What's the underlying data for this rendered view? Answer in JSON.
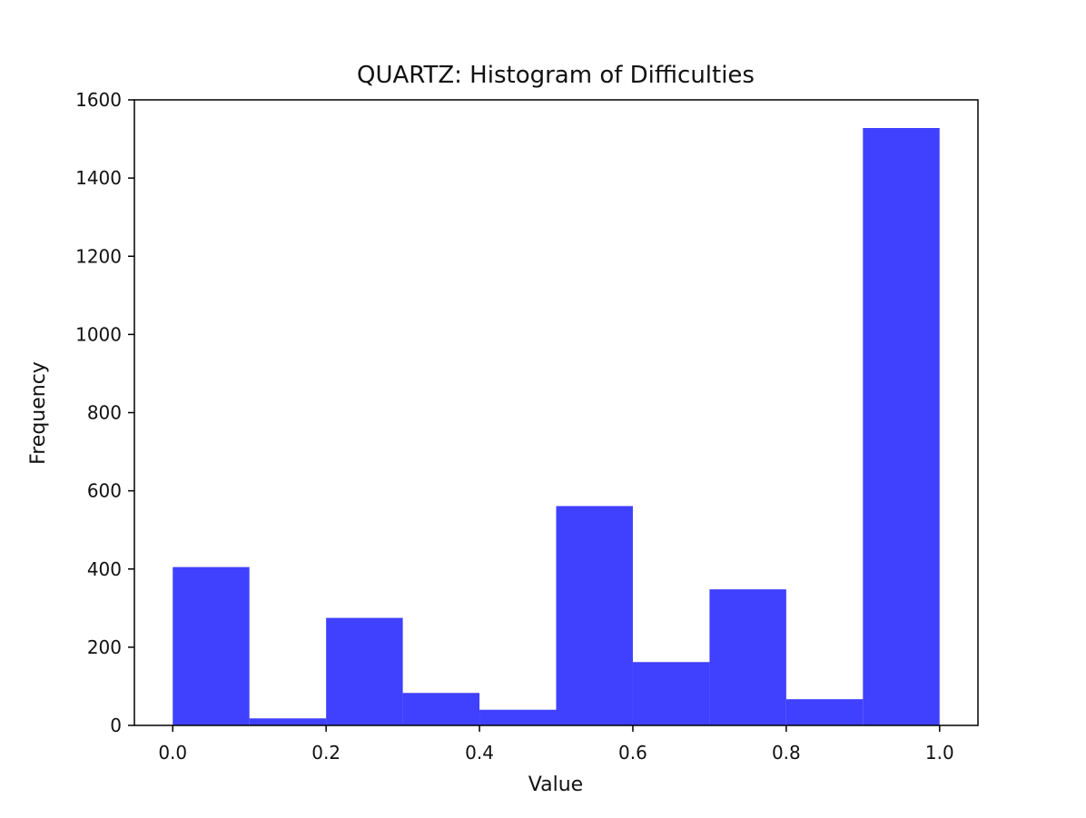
{
  "chart_data": {
    "type": "bar",
    "title": "QUARTZ: Histogram of Difficulties",
    "xlabel": "Value",
    "ylabel": "Frequency",
    "bin_edges": [
      0.0,
      0.1,
      0.2,
      0.3,
      0.4,
      0.5,
      0.6,
      0.7,
      0.8,
      0.9,
      1.0
    ],
    "values": [
      405,
      18,
      275,
      83,
      40,
      561,
      162,
      348,
      67,
      1528
    ],
    "xlim": [
      -0.05,
      1.05
    ],
    "ylim": [
      0,
      1600
    ],
    "xticks": [
      "0.0",
      "0.2",
      "0.4",
      "0.6",
      "0.8",
      "1.0"
    ],
    "yticks": [
      "0",
      "200",
      "400",
      "600",
      "800",
      "1000",
      "1200",
      "1400",
      "1600"
    ],
    "bar_color": "#4040ff",
    "grid": false
  }
}
